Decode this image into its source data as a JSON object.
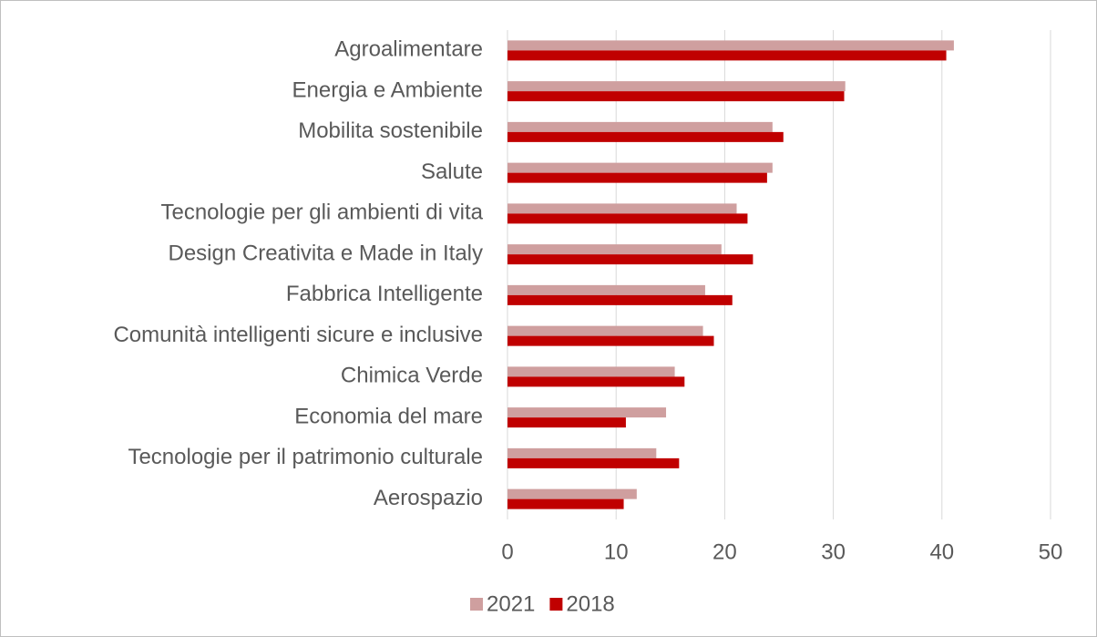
{
  "chart_data": {
    "type": "hbar",
    "categories": [
      "Agroalimentare",
      "Energia e Ambiente",
      "Mobilita sostenibile",
      "Salute",
      "Tecnologie per gli ambienti di vita",
      "Design Creativita e Made in Italy",
      "Fabbrica Intelligente",
      "Comunità intelligenti sicure e inclusive",
      "Chimica Verde",
      "Economia del mare",
      "Tecnologie per il patrimonio culturale",
      "Aerospazio"
    ],
    "series": [
      {
        "name": "2021",
        "color": "#cf9f9f",
        "values": [
          41.1,
          31.1,
          24.4,
          24.4,
          21.1,
          19.7,
          18.2,
          18.0,
          15.4,
          14.6,
          13.7,
          11.9
        ]
      },
      {
        "name": "2018",
        "color": "#c00000",
        "values": [
          40.4,
          31.0,
          25.4,
          23.9,
          22.1,
          22.6,
          20.7,
          19.0,
          16.3,
          10.9,
          15.8,
          10.7
        ]
      }
    ],
    "xlim": [
      0,
      50
    ],
    "xticks": [
      0,
      10,
      20,
      30,
      40,
      50
    ],
    "grid": true,
    "legend": "bottom"
  }
}
